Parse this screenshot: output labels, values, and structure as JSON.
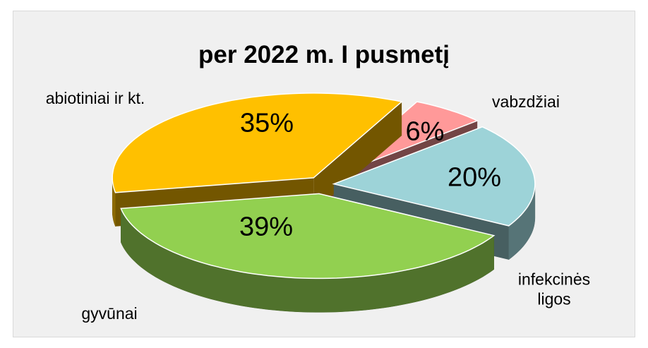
{
  "chart_data": {
    "type": "pie",
    "title": "per 2022 m. I pusmetį",
    "categories": [
      "abiotiniai ir kt.",
      "vabzdžiai",
      "infekcinės ligos",
      "gyvūnai"
    ],
    "values": [
      35,
      6,
      20,
      39
    ],
    "value_labels": [
      "35%",
      "6%",
      "20%",
      "39%"
    ],
    "colors": [
      "#ffc000",
      "#ff9999",
      "#9dd3d8",
      "#92d050"
    ],
    "three_d": true,
    "exploded": true
  }
}
